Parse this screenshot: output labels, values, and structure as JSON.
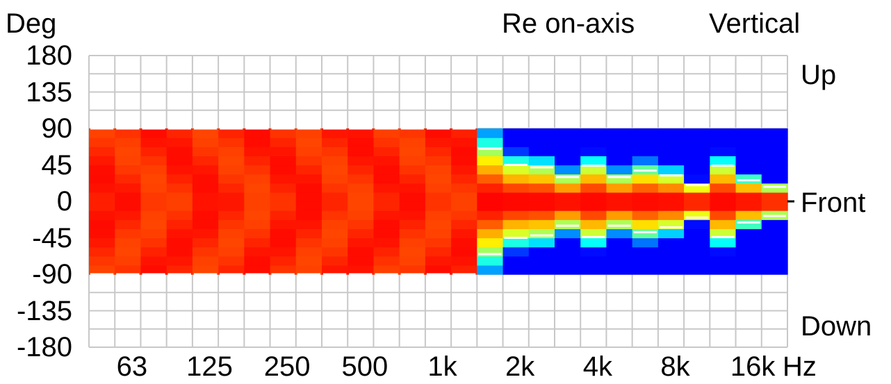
{
  "header": {
    "y_unit": "Deg",
    "reference": "Re on-axis",
    "plane": "Vertical"
  },
  "right_labels": {
    "up": "Up",
    "front": "Front",
    "down": "Down"
  },
  "x_unit": "Hz",
  "chart_data": {
    "type": "heatmap",
    "xlabel": "Hz",
    "ylabel": "Deg",
    "x_scale": "log",
    "ylim": [
      -180,
      180
    ],
    "y_ticks": [
      "180",
      "135",
      "90",
      "45",
      "0",
      "-45",
      "-90",
      "-135",
      "-180"
    ],
    "x_ticks": [
      "63",
      "125",
      "250",
      "500",
      "1k",
      "2k",
      "4k",
      "8k",
      "16k"
    ],
    "grid": true,
    "measured_range_deg": [
      -90,
      90
    ],
    "colorscale": [
      "#0000ff",
      "#00aaff",
      "#00ffff",
      "#80ff80",
      "#ffff00",
      "#ffa500",
      "#ff0000"
    ],
    "frequency_bands": [
      "50",
      "63",
      "80",
      "100",
      "125",
      "160",
      "200",
      "250",
      "315",
      "400",
      "500",
      "630",
      "800",
      "1k",
      "1.25k",
      "1.6k",
      "2k",
      "2.5k",
      "3.15k",
      "4k",
      "5k",
      "6.3k",
      "8k",
      "10k",
      "12.5k",
      "16k",
      "20k"
    ],
    "half_level_angle_deg": [
      90,
      90,
      90,
      90,
      90,
      90,
      90,
      90,
      90,
      90,
      90,
      90,
      90,
      90,
      90,
      65,
      45,
      42,
      30,
      44,
      30,
      38,
      32,
      20,
      44,
      26,
      18
    ]
  }
}
